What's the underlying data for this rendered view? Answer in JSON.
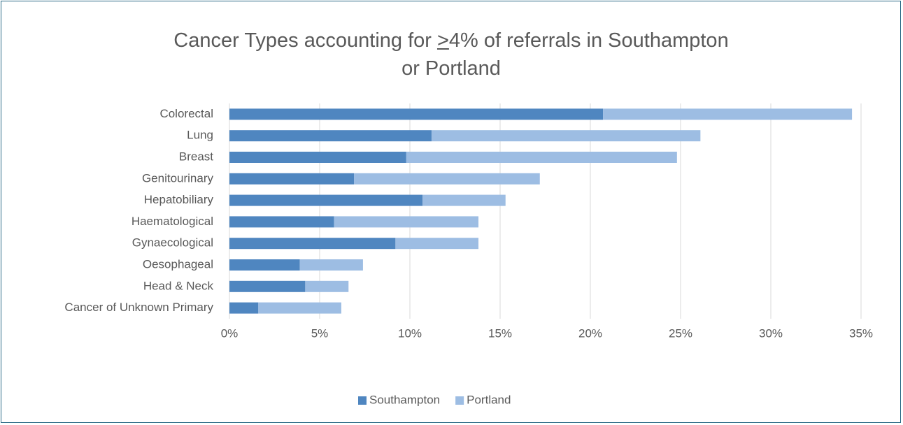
{
  "chart_data": {
    "type": "stacked_bar_horizontal",
    "title": "Cancer Types accounting for >4% of referrals in Southampton or Portland",
    "categories": [
      "Colorectal",
      "Lung",
      "Breast",
      "Genitourinary",
      "Hepatobiliary",
      "Haematological",
      "Gynaecological",
      "Oesophageal",
      "Head & Neck",
      "Cancer of Unknown Primary"
    ],
    "series": [
      {
        "name": "Southampton",
        "color": "#4f86c0",
        "values": [
          20.7,
          11.2,
          9.8,
          6.9,
          10.7,
          5.8,
          9.2,
          3.9,
          4.2,
          1.6
        ]
      },
      {
        "name": "Portland",
        "color": "#9dbde3",
        "values": [
          13.8,
          14.9,
          15.0,
          10.3,
          4.6,
          8.0,
          4.6,
          3.5,
          2.4,
          4.6
        ]
      }
    ],
    "xlim": [
      0,
      35
    ],
    "xticks": [
      {
        "value": 0,
        "label": "0%"
      },
      {
        "value": 5,
        "label": "5%"
      },
      {
        "value": 10,
        "label": "10%"
      },
      {
        "value": 15,
        "label": "15%"
      },
      {
        "value": 20,
        "label": "20%"
      },
      {
        "value": 25,
        "label": "25%"
      },
      {
        "value": 30,
        "label": "30%"
      },
      {
        "value": 35,
        "label": "35%"
      }
    ],
    "grid": true,
    "legend": "bottom"
  }
}
